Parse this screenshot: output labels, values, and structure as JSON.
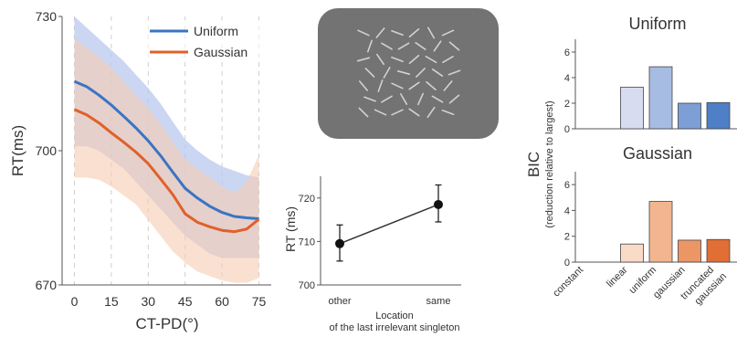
{
  "chart_data": [
    {
      "id": "rt-curve",
      "type": "line",
      "ylabel": "RT(ms)",
      "xlabel": "CT-PD(°)",
      "xlim": [
        -5,
        80
      ],
      "ylim": [
        670,
        730
      ],
      "xticks": [
        0,
        15,
        30,
        45,
        60,
        75
      ],
      "yticks": [
        670,
        700,
        730
      ],
      "grid": "dashed vertical",
      "legend_position": "top-right",
      "series": [
        {
          "name": "Uniform",
          "color": "#3a74c4",
          "band_color": "#b8c8ee",
          "x": [
            0,
            5,
            10,
            15,
            20,
            25,
            30,
            35,
            40,
            45,
            50,
            55,
            60,
            65,
            70,
            75
          ],
          "y": [
            715.5,
            714.3,
            712.4,
            710.2,
            707.7,
            705.1,
            702.2,
            698.9,
            695.2,
            691.6,
            689.4,
            687.6,
            686.2,
            685.3,
            685.0,
            684.8
          ],
          "lower": [
            701,
            701,
            700,
            698,
            696,
            693,
            690,
            687,
            684,
            681,
            679,
            677,
            676,
            676,
            676,
            676
          ],
          "upper": [
            730,
            727.5,
            725,
            722.5,
            720,
            717,
            714,
            710.5,
            706.5,
            702.5,
            700,
            698,
            696.5,
            695.5,
            694.5,
            694
          ]
        },
        {
          "name": "Gaussian",
          "color": "#e1602a",
          "band_color": "#f6cbb1",
          "x": [
            0,
            5,
            10,
            15,
            20,
            25,
            30,
            35,
            40,
            45,
            50,
            55,
            60,
            65,
            70,
            75
          ],
          "y": [
            709.2,
            708.0,
            706.2,
            704.0,
            701.9,
            699.7,
            697.1,
            693.7,
            690.2,
            685.9,
            684.0,
            683.0,
            682.2,
            681.9,
            682.5,
            684.7
          ],
          "lower": [
            694,
            694,
            693.5,
            692,
            690,
            688,
            684.5,
            681,
            677.5,
            675,
            673,
            672,
            671,
            670.5,
            670.5,
            671.5
          ],
          "upper": [
            725,
            723,
            721,
            718.5,
            715.5,
            712.5,
            709.5,
            706,
            702,
            698,
            696,
            694,
            692,
            690.5,
            693,
            699
          ]
        }
      ]
    },
    {
      "id": "rt-location",
      "type": "line",
      "ylabel": "RT (ms)",
      "xlabel_lines": [
        "Location",
        "of the last irrelevant singleton"
      ],
      "categories": [
        "other",
        "same"
      ],
      "ylim": [
        700,
        725
      ],
      "yticks": [
        700,
        710,
        720
      ],
      "values": [
        709.5,
        718.5
      ],
      "err_low": [
        705.5,
        714.5
      ],
      "err_high": [
        713.8,
        723
      ]
    },
    {
      "id": "bic-uniform",
      "type": "bar",
      "title": "Uniform",
      "ylim": [
        0,
        7
      ],
      "yticks": [
        0,
        2,
        4,
        6
      ],
      "categories": [
        "constant",
        "linear",
        "uniform",
        "gaussian",
        "truncated gaussian"
      ],
      "values": [
        0,
        3.25,
        4.85,
        2.0,
        2.05
      ],
      "colors": [
        "#ffffff",
        "#d7dcf1",
        "#a7bce3",
        "#7d9fd6",
        "#4f7fc6"
      ]
    },
    {
      "id": "bic-gaussian",
      "type": "bar",
      "title": "Gaussian",
      "ylim": [
        0,
        7
      ],
      "yticks": [
        0,
        2,
        4,
        6
      ],
      "categories": [
        "constant",
        "linear",
        "uniform",
        "gaussian",
        "truncated gaussian"
      ],
      "values": [
        0,
        1.4,
        4.7,
        1.7,
        1.75
      ],
      "colors": [
        "#ffffff",
        "#fadbc8",
        "#f3b58f",
        "#ec9565",
        "#e06e35"
      ]
    }
  ],
  "bic_shared": {
    "ylabel": "BIC",
    "ylabel_sub": "(reduction relative to largest)",
    "xtick_labels": [
      "constant",
      "linear",
      "uniform",
      "gaussian",
      "truncated",
      "gaussian"
    ]
  },
  "stimulus": {
    "description_icon": "search-display-oriented-lines",
    "bg": "#737373",
    "line_color": "#d2d2d2"
  }
}
